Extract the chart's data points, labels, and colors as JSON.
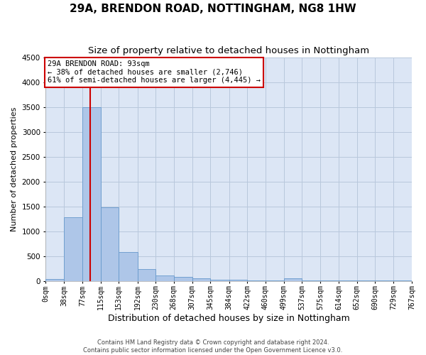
{
  "title": "29A, BRENDON ROAD, NOTTINGHAM, NG8 1HW",
  "subtitle": "Size of property relative to detached houses in Nottingham",
  "xlabel": "Distribution of detached houses by size in Nottingham",
  "ylabel": "Number of detached properties",
  "footer_line1": "Contains HM Land Registry data © Crown copyright and database right 2024.",
  "footer_line2": "Contains public sector information licensed under the Open Government Licence v3.0.",
  "bin_edges": [
    0,
    38,
    77,
    115,
    153,
    192,
    230,
    268,
    307,
    345,
    384,
    422,
    460,
    499,
    537,
    575,
    614,
    652,
    690,
    729,
    767
  ],
  "bin_labels": [
    "0sqm",
    "38sqm",
    "77sqm",
    "115sqm",
    "153sqm",
    "192sqm",
    "230sqm",
    "268sqm",
    "307sqm",
    "345sqm",
    "384sqm",
    "422sqm",
    "460sqm",
    "499sqm",
    "537sqm",
    "575sqm",
    "614sqm",
    "652sqm",
    "690sqm",
    "729sqm",
    "767sqm"
  ],
  "bar_heights": [
    40,
    1280,
    3500,
    1480,
    575,
    240,
    115,
    85,
    55,
    30,
    20,
    12,
    8,
    55,
    5,
    3,
    2,
    2,
    2,
    2
  ],
  "bar_color": "#aec6e8",
  "bar_edge_color": "#6699cc",
  "property_size": 93,
  "property_label": "29A BRENDON ROAD: 93sqm",
  "annotation_line1": "← 38% of detached houses are smaller (2,746)",
  "annotation_line2": "61% of semi-detached houses are larger (4,445) →",
  "vline_color": "#cc0000",
  "annotation_box_edgecolor": "#cc0000",
  "ylim": [
    0,
    4500
  ],
  "background_color": "#ffffff",
  "plot_bg_color": "#dce6f5",
  "grid_color": "#b8c8dc",
  "title_fontsize": 11,
  "subtitle_fontsize": 9.5,
  "xlabel_fontsize": 9,
  "ylabel_fontsize": 8,
  "tick_fontsize": 7,
  "annotation_fontsize": 7.5,
  "footer_fontsize": 6
}
